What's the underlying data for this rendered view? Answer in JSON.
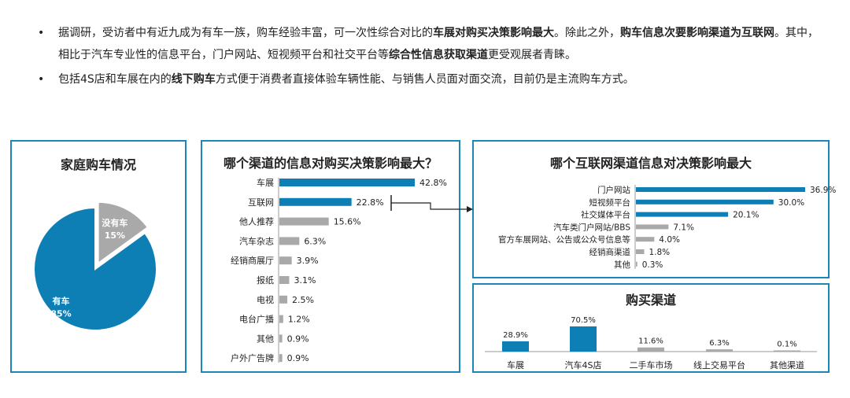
{
  "bullets": [
    {
      "parts": [
        {
          "text": "据调研，受访者中有近九成为有车一族，购车经验丰富，可一次性综合对比的",
          "bold": false
        },
        {
          "text": "车展对购买决策影响最大",
          "bold": true
        },
        {
          "text": "。除此之外，",
          "bold": false
        },
        {
          "text": "购车信息次要影响渠道为互联网",
          "bold": true
        },
        {
          "text": "。其中，相比于汽车专业性的信息平台，门户网站、短视频平台和社交平台等",
          "bold": false
        },
        {
          "text": "综合性信息获取渠道",
          "bold": true
        },
        {
          "text": "更受观展者青睐。",
          "bold": false
        }
      ]
    },
    {
      "parts": [
        {
          "text": "包括4S店和车展在内的",
          "bold": false
        },
        {
          "text": "线下购车",
          "bold": true
        },
        {
          "text": "方式便于消费者直接体验车辆性能、与销售人员面对面交流，目前仍是主流购车方式。",
          "bold": false
        }
      ]
    }
  ],
  "bullet_glyph": "•",
  "colors": {
    "blue": "#0e7fb5",
    "gray": "#a9a9a9",
    "border": "#1c86b8"
  },
  "chart_data": [
    {
      "type": "pie",
      "title": "家庭购车情况",
      "slices": [
        {
          "label": "有车",
          "value": 85,
          "value_label": "85%",
          "color": "#0e7fb5"
        },
        {
          "label": "没有车",
          "value": 15,
          "value_label": "15%",
          "color": "#a9a9a9"
        }
      ]
    },
    {
      "type": "bar",
      "orientation": "horizontal",
      "title": "哪个渠道的信息对购买决策影响最大？",
      "categories": [
        "车展",
        "互联网",
        "他人推荐",
        "汽车杂志",
        "经销商展厅",
        "报纸",
        "电视",
        "电台广播",
        "其他",
        "户外广告牌"
      ],
      "values": [
        42.8,
        22.8,
        15.6,
        6.3,
        3.9,
        3.1,
        2.5,
        1.2,
        0.9,
        0.9
      ],
      "value_labels": [
        "42.8%",
        "22.8%",
        "15.6%",
        "6.3%",
        "3.9%",
        "3.1%",
        "2.5%",
        "1.2%",
        "0.9%",
        "0.9%"
      ],
      "highlight": [
        true,
        true,
        false,
        false,
        false,
        false,
        false,
        false,
        false,
        false
      ]
    },
    {
      "type": "bar",
      "orientation": "horizontal",
      "title": "哪个互联网渠道信息对决策影响最大",
      "categories": [
        "门户网站",
        "短视频平台",
        "社交媒体平台",
        "汽车类门户网站/BBS",
        "官方车展网站、公告或公众号信息等",
        "经销商渠道",
        "其他"
      ],
      "values": [
        36.9,
        30.0,
        20.1,
        7.1,
        4.0,
        1.8,
        0.3
      ],
      "value_labels": [
        "36.9%",
        "30.0%",
        "20.1%",
        "7.1%",
        "4.0%",
        "1.8%",
        "0.3%"
      ],
      "highlight": [
        true,
        true,
        true,
        false,
        false,
        false,
        false
      ]
    },
    {
      "type": "bar",
      "orientation": "vertical",
      "title": "购买渠道",
      "categories": [
        "车展",
        "汽车4S店",
        "二手车市场",
        "线上交易平台",
        "其他渠道"
      ],
      "values": [
        28.9,
        70.5,
        11.6,
        6.3,
        0.1
      ],
      "value_labels": [
        "28.9%",
        "70.5%",
        "11.6%",
        "6.3%",
        "0.1%"
      ],
      "highlight": [
        true,
        true,
        false,
        false,
        false
      ]
    }
  ]
}
